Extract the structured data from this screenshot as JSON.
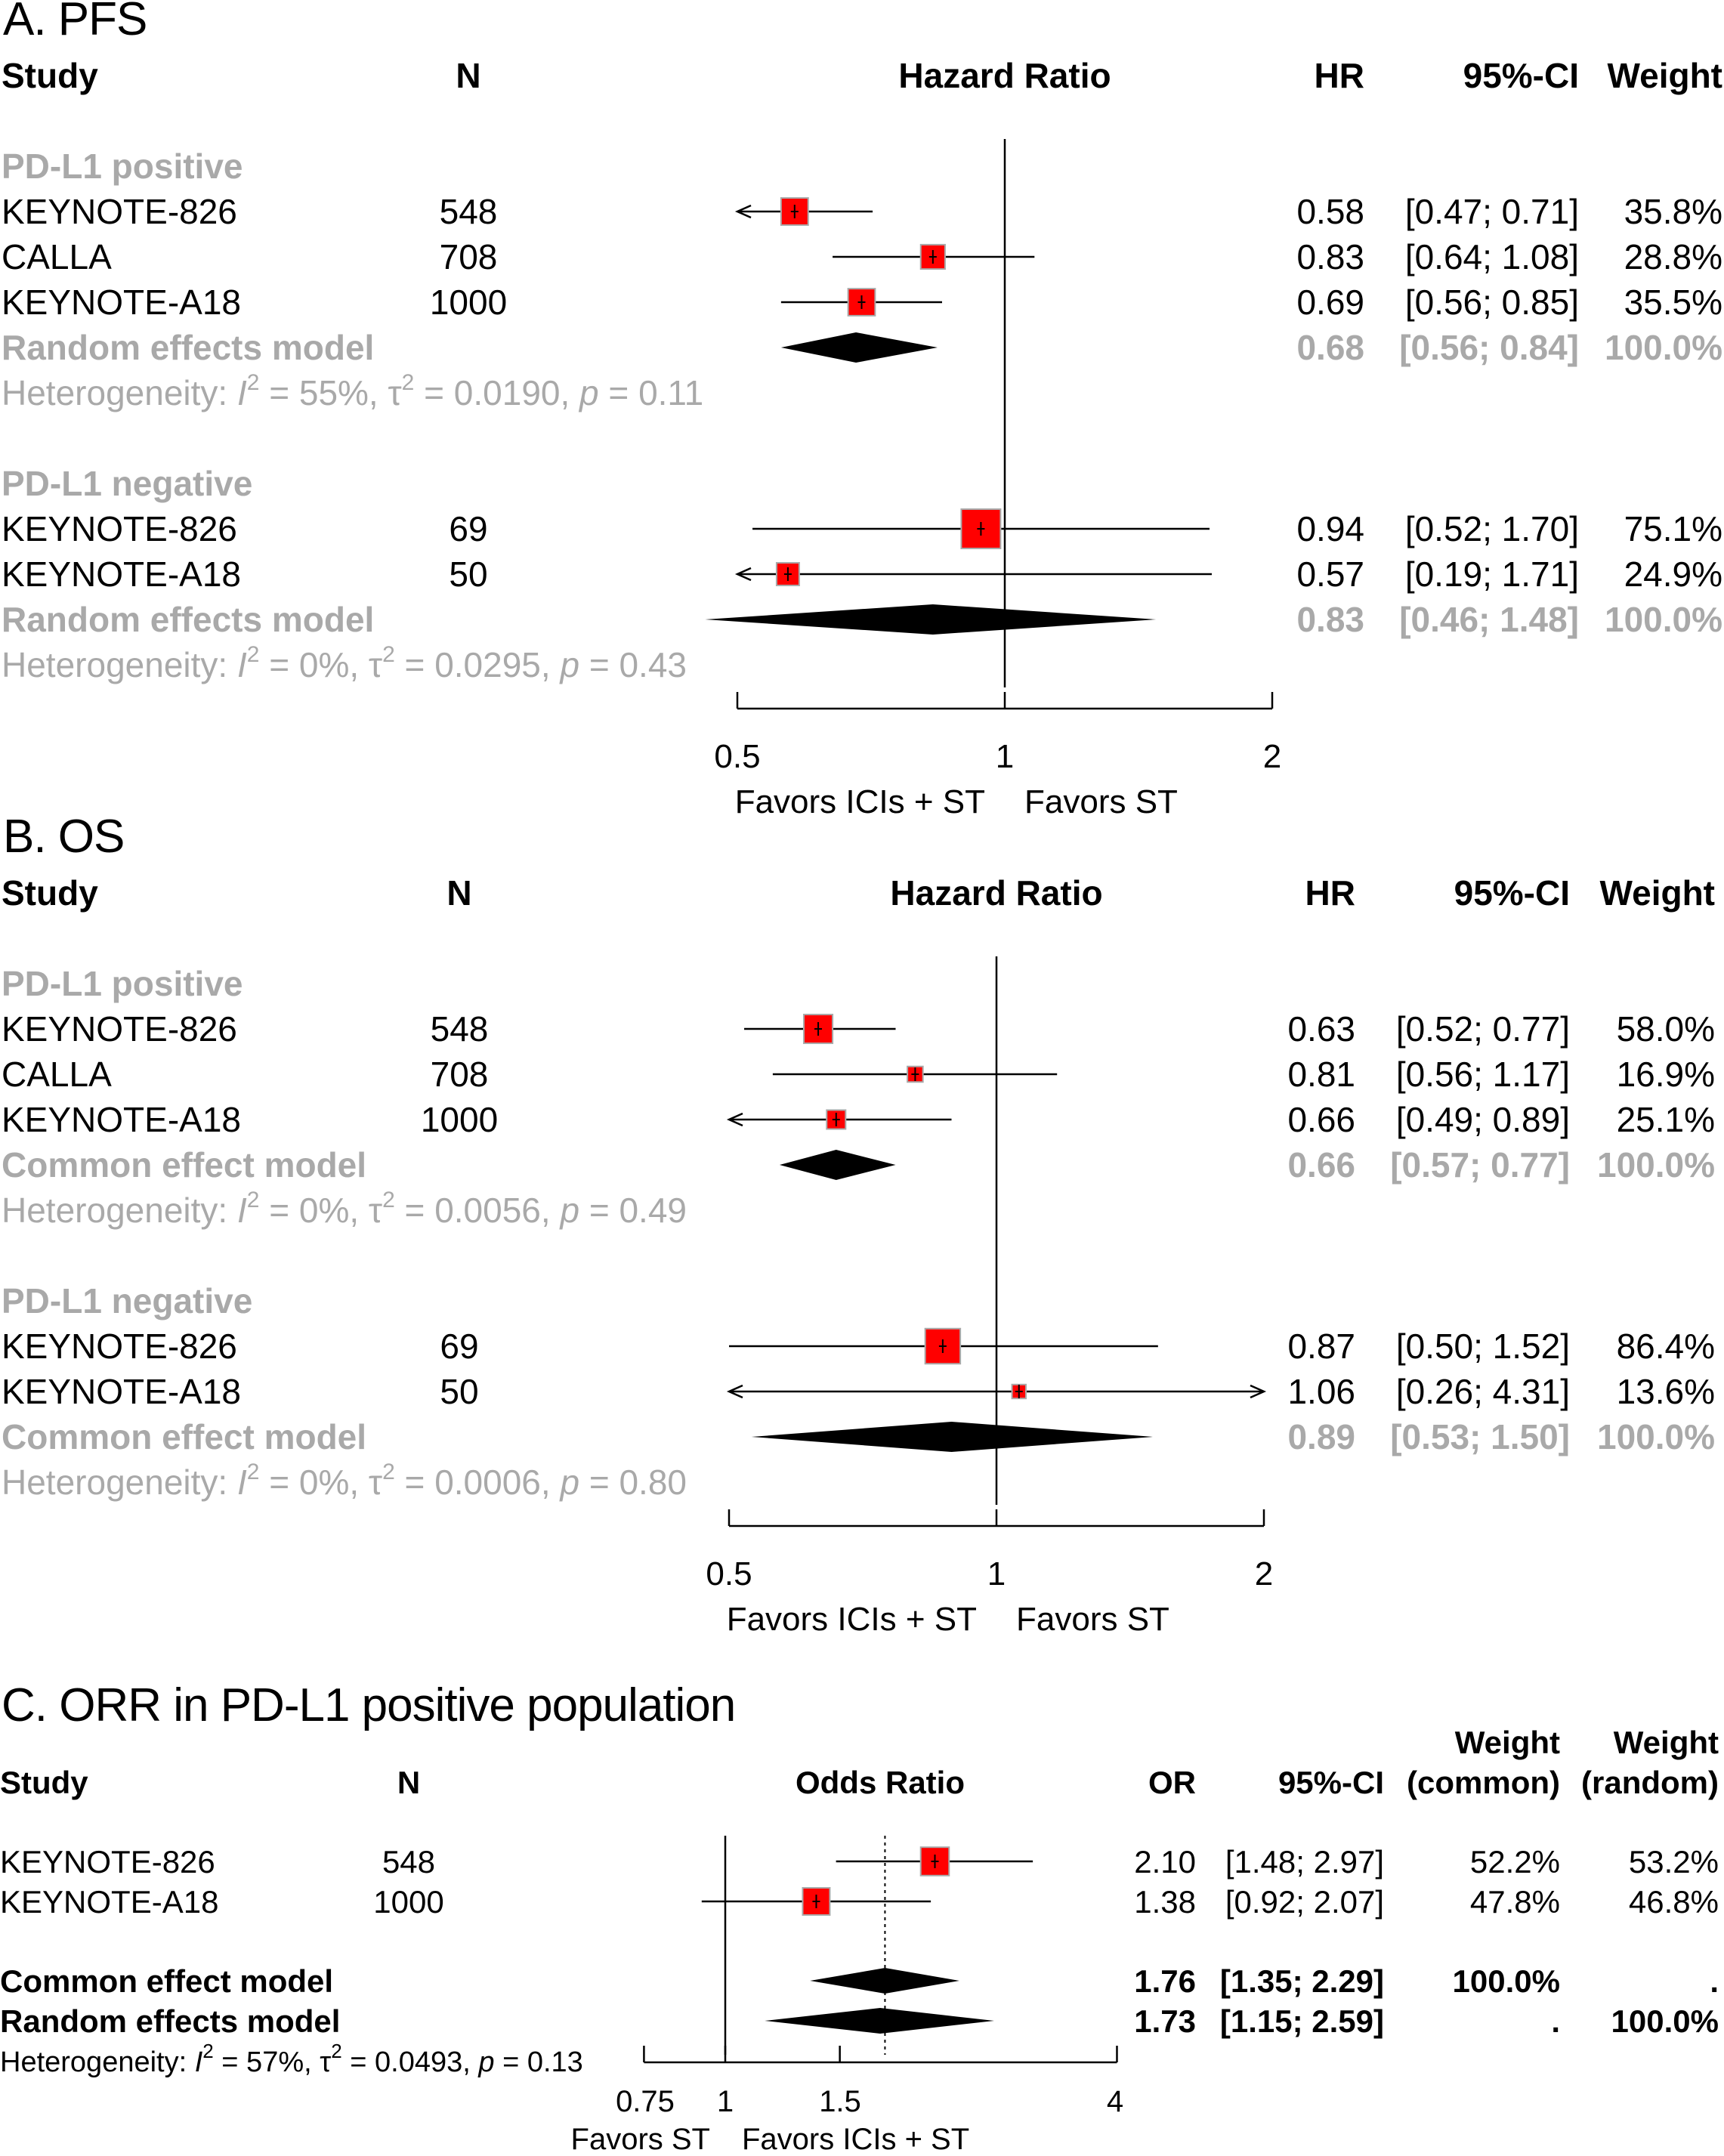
{
  "chart_data": [
    {
      "type": "forest",
      "title": "A. PFS",
      "headers": {
        "study": "Study",
        "n": "N",
        "effect": "Hazard Ratio",
        "est": "HR",
        "ci": "95%-CI",
        "weight": "Weight"
      },
      "axis": {
        "scale": "log",
        "ticks": [
          0.5,
          1,
          2
        ],
        "tick_labels": [
          "0.5",
          "1",
          "2"
        ],
        "ref_line": 1
      },
      "favors_left": "Favors ICIs + ST",
      "favors_right": "Favors ST",
      "groups": [
        {
          "label": "PD-L1 positive",
          "studies": [
            {
              "name": "KEYNOTE-826",
              "n": "548",
              "hr": 0.58,
              "lo": 0.47,
              "hi": 0.71,
              "est_text": "0.58",
              "ci_text": "[0.47; 0.71]",
              "weight_text": "35.8%",
              "weight": 35.8
            },
            {
              "name": "CALLA",
              "n": "708",
              "hr": 0.83,
              "lo": 0.64,
              "hi": 1.08,
              "est_text": "0.83",
              "ci_text": "[0.64; 1.08]",
              "weight_text": "28.8%",
              "weight": 28.8
            },
            {
              "name": "KEYNOTE-A18",
              "n": "1000",
              "hr": 0.69,
              "lo": 0.56,
              "hi": 0.85,
              "est_text": "0.69",
              "ci_text": "[0.56; 0.85]",
              "weight_text": "35.5%",
              "weight": 35.5
            }
          ],
          "pooled": {
            "label": "Random effects model",
            "hr": 0.68,
            "lo": 0.56,
            "hi": 0.84,
            "est_text": "0.68",
            "ci_text": "[0.56; 0.84]",
            "weight_text": "100.0%"
          },
          "het": {
            "prefix": "Heterogeneity: ",
            "i_sym": "I",
            "sup": "2",
            "i_val": " = 55%, ",
            "tau": "τ",
            "tau_val": " = 0.0190, ",
            "p": "p",
            "p_val": " = 0.11"
          }
        },
        {
          "label": "PD-L1 negative",
          "studies": [
            {
              "name": "KEYNOTE-826",
              "n": "69",
              "hr": 0.94,
              "lo": 0.52,
              "hi": 1.7,
              "est_text": "0.94",
              "ci_text": "[0.52; 1.70]",
              "weight_text": "75.1%",
              "weight": 75.1
            },
            {
              "name": "KEYNOTE-A18",
              "n": "50",
              "hr": 0.57,
              "lo": 0.19,
              "hi": 1.71,
              "est_text": "0.57",
              "ci_text": "[0.19; 1.71]",
              "weight_text": "24.9%",
              "weight": 24.9
            }
          ],
          "pooled": {
            "label": "Random effects model",
            "hr": 0.83,
            "lo": 0.46,
            "hi": 1.48,
            "est_text": "0.83",
            "ci_text": "[0.46; 1.48]",
            "weight_text": "100.0%"
          },
          "het": {
            "prefix": "Heterogeneity: ",
            "i_sym": "I",
            "sup": "2",
            "i_val": " = 0%, ",
            "tau": "τ",
            "tau_val": " = 0.0295, ",
            "p": "p",
            "p_val": " = 0.43"
          }
        }
      ]
    },
    {
      "type": "forest",
      "title": "B. OS",
      "headers": {
        "study": "Study",
        "n": "N",
        "effect": "Hazard Ratio",
        "est": "HR",
        "ci": "95%-CI",
        "weight": "Weight"
      },
      "axis": {
        "scale": "log",
        "ticks": [
          0.5,
          1,
          2
        ],
        "tick_labels": [
          "0.5",
          "1",
          "2"
        ],
        "ref_line": 1
      },
      "favors_left": "Favors ICIs + ST",
      "favors_right": "Favors ST",
      "groups": [
        {
          "label": "PD-L1 positive",
          "studies": [
            {
              "name": "KEYNOTE-826",
              "n": "548",
              "hr": 0.63,
              "lo": 0.52,
              "hi": 0.77,
              "est_text": "0.63",
              "ci_text": "[0.52; 0.77]",
              "weight_text": "58.0%",
              "weight": 58.0
            },
            {
              "name": "CALLA",
              "n": "708",
              "hr": 0.81,
              "lo": 0.56,
              "hi": 1.17,
              "est_text": "0.81",
              "ci_text": "[0.56; 1.17]",
              "weight_text": "16.9%",
              "weight": 16.9
            },
            {
              "name": "KEYNOTE-A18",
              "n": "1000",
              "hr": 0.66,
              "lo": 0.49,
              "hi": 0.89,
              "est_text": "0.66",
              "ci_text": "[0.49; 0.89]",
              "weight_text": "25.1%",
              "weight": 25.1
            }
          ],
          "pooled": {
            "label": "Common effect model",
            "hr": 0.66,
            "lo": 0.57,
            "hi": 0.77,
            "est_text": "0.66",
            "ci_text": "[0.57; 0.77]",
            "weight_text": "100.0%"
          },
          "het": {
            "prefix": "Heterogeneity: ",
            "i_sym": "I",
            "sup": "2",
            "i_val": " = 0%, ",
            "tau": "τ",
            "tau_val": " = 0.0056, ",
            "p": "p",
            "p_val": " = 0.49"
          }
        },
        {
          "label": "PD-L1 negative",
          "studies": [
            {
              "name": "KEYNOTE-826",
              "n": "69",
              "hr": 0.87,
              "lo": 0.5,
              "hi": 1.52,
              "est_text": "0.87",
              "ci_text": "[0.50; 1.52]",
              "weight_text": "86.4%",
              "weight": 86.4
            },
            {
              "name": "KEYNOTE-A18",
              "n": "50",
              "hr": 1.06,
              "lo": 0.26,
              "hi": 4.31,
              "est_text": "1.06",
              "ci_text": "[0.26; 4.31]",
              "weight_text": "13.6%",
              "weight": 13.6
            }
          ],
          "pooled": {
            "label": "Common effect model",
            "hr": 0.89,
            "lo": 0.53,
            "hi": 1.5,
            "est_text": "0.89",
            "ci_text": "[0.53; 1.50]",
            "weight_text": "100.0%"
          },
          "het": {
            "prefix": "Heterogeneity: ",
            "i_sym": "I",
            "sup": "2",
            "i_val": " = 0%, ",
            "tau": "τ",
            "tau_val": " = 0.0006, ",
            "p": "p",
            "p_val": " = 0.80"
          }
        }
      ]
    },
    {
      "type": "forest",
      "title": "C. ORR in PD-L1 positive population",
      "headers": {
        "study": "Study",
        "n": "N",
        "effect": "Odds Ratio",
        "est": "OR",
        "ci": "95%-CI",
        "weight_common_1": "Weight",
        "weight_common_2": "(common)",
        "weight_random_1": "Weight",
        "weight_random_2": "(random)"
      },
      "axis": {
        "scale": "log",
        "ticks": [
          0.75,
          1,
          1.5,
          4
        ],
        "tick_labels": [
          "0.75",
          "1",
          "1.5",
          "4"
        ],
        "ref_line": 1,
        "pooled_line": 1.76
      },
      "favors_left": "Favors ST",
      "favors_right": "Favors ICIs + ST",
      "studies": [
        {
          "name": "KEYNOTE-826",
          "n": "548",
          "or": 2.1,
          "lo": 1.48,
          "hi": 2.97,
          "est_text": "2.10",
          "ci_text": "[1.48; 2.97]",
          "wc_text": "52.2%",
          "wr_text": "53.2%",
          "weight": 52.2
        },
        {
          "name": "KEYNOTE-A18",
          "n": "1000",
          "or": 1.38,
          "lo": 0.92,
          "hi": 2.07,
          "est_text": "1.38",
          "ci_text": "[0.92; 2.07]",
          "wc_text": "47.8%",
          "wr_text": "46.8%",
          "weight": 47.8
        }
      ],
      "pooled": [
        {
          "label": "Common effect model",
          "or": 1.76,
          "lo": 1.35,
          "hi": 2.29,
          "est_text": "1.76",
          "ci_text": "[1.35; 2.29]",
          "wc_text": "100.0%",
          "wr_text": "."
        },
        {
          "label": "Random effects model",
          "or": 1.73,
          "lo": 1.15,
          "hi": 2.59,
          "est_text": "1.73",
          "ci_text": "[1.15; 2.59]",
          "wc_text": ".",
          "wr_text": "100.0%"
        }
      ],
      "het": {
        "prefix": "Heterogeneity: ",
        "i_sym": "I",
        "sup": "2",
        "i_val": " = 57%, ",
        "tau": "τ",
        "tau_val": " = 0.0493, ",
        "p": "p",
        "p_val": " = 0.13"
      }
    }
  ],
  "colors": {
    "square": "#ff0000",
    "square_border": "#a9a9a9",
    "muted": "#a9a9a9",
    "ink": "#000000"
  }
}
